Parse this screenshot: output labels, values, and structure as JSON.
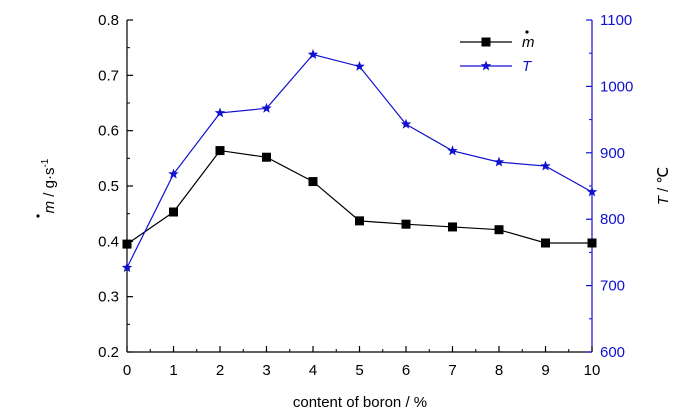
{
  "chart_data": {
    "type": "line",
    "xlabel": "content of boron / %",
    "ylabel_left": {
      "symbol": "m",
      "rest": " / g·s",
      "sup": "-1"
    },
    "ylabel_right": {
      "symbol": "T",
      "rest": " / ℃"
    },
    "x": [
      0,
      1,
      2,
      3,
      4,
      5,
      6,
      7,
      8,
      9,
      10
    ],
    "xlim": [
      0,
      10
    ],
    "ylim_left": [
      0.2,
      0.8
    ],
    "ylim_right": [
      600,
      1100
    ],
    "x_ticks": [
      "0",
      "1",
      "2",
      "3",
      "4",
      "5",
      "6",
      "7",
      "8",
      "9",
      "10"
    ],
    "y_left_ticks": [
      "0.2",
      "0.3",
      "0.4",
      "0.5",
      "0.6",
      "0.7",
      "0.8"
    ],
    "y_right_ticks": [
      "600",
      "700",
      "800",
      "900",
      "1000",
      "1100"
    ],
    "legend_position": "top-right",
    "series": [
      {
        "name": "m",
        "axis": "left",
        "marker": "square",
        "color": "#000000",
        "values": [
          0.395,
          0.453,
          0.564,
          0.552,
          0.508,
          0.437,
          0.431,
          0.426,
          0.421,
          0.397,
          0.397
        ]
      },
      {
        "name": "T",
        "axis": "right",
        "marker": "star",
        "color": "#1010d0",
        "values": [
          727,
          868,
          960,
          967,
          1048,
          1030,
          943,
          903,
          886,
          880,
          841
        ]
      }
    ]
  }
}
